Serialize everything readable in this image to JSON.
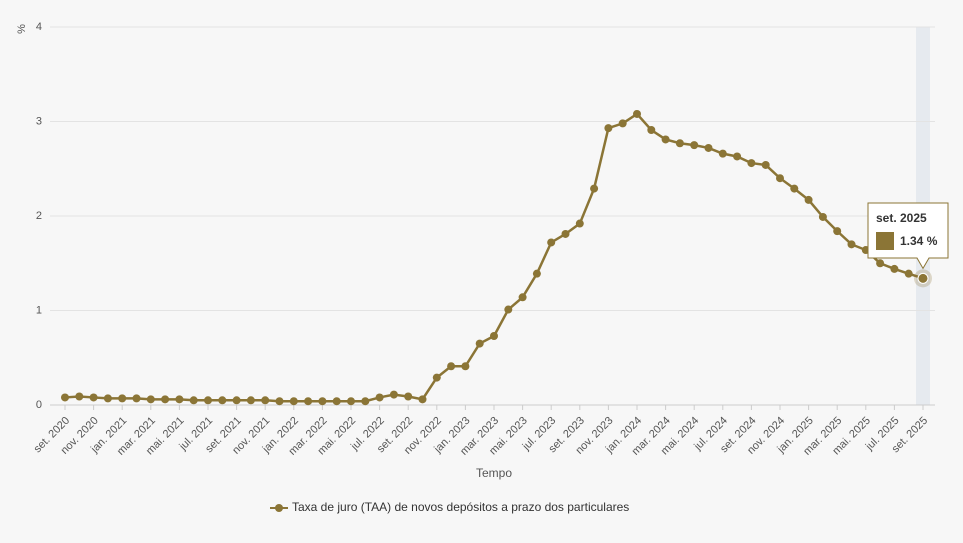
{
  "chart_data": {
    "type": "line",
    "y_unit": "%",
    "x_label": "Tempo",
    "categories": [
      "set. 2020",
      null,
      "nov. 2020",
      null,
      "jan. 2021",
      null,
      "mar. 2021",
      null,
      "mai. 2021",
      null,
      "jul. 2021",
      null,
      "set. 2021",
      null,
      "nov. 2021",
      null,
      "jan. 2022",
      null,
      "mar. 2022",
      null,
      "mai. 2022",
      null,
      "jul. 2022",
      null,
      "set. 2022",
      null,
      "nov. 2022",
      null,
      "jan. 2023",
      null,
      "mar. 2023",
      null,
      "mai. 2023",
      null,
      "jul. 2023",
      null,
      "set. 2023",
      null,
      "nov. 2023",
      null,
      "jan. 2024",
      null,
      "mar. 2024",
      null,
      "mai. 2024",
      null,
      "jul. 2024",
      null,
      "set. 2024",
      null,
      "nov. 2024",
      null,
      "jan. 2025",
      null,
      "mar. 2025",
      null,
      "mai. 2025",
      null,
      "jul. 2025",
      null,
      "set. 2025"
    ],
    "series": [
      {
        "name": "Taxa de juro (TAA) de novos depósitos a prazo dos particulares",
        "color": "#8b7536",
        "values": [
          0.08,
          0.09,
          0.08,
          0.07,
          0.07,
          0.07,
          0.06,
          0.06,
          0.06,
          0.05,
          0.05,
          0.05,
          0.05,
          0.05,
          0.05,
          0.04,
          0.04,
          0.04,
          0.04,
          0.04,
          0.04,
          0.04,
          0.08,
          0.11,
          0.09,
          0.06,
          0.29,
          0.41,
          0.41,
          0.65,
          0.73,
          1.01,
          1.14,
          1.39,
          1.72,
          1.81,
          1.92,
          2.29,
          2.93,
          2.98,
          3.08,
          2.91,
          2.81,
          2.77,
          2.75,
          2.72,
          2.66,
          2.63,
          2.56,
          2.54,
          2.4,
          2.29,
          2.17,
          1.99,
          1.84,
          1.7,
          1.64,
          1.5,
          1.44,
          1.39,
          1.34
        ]
      }
    ],
    "ylim": [
      0,
      4
    ],
    "yticks": [
      0,
      1,
      2,
      3,
      4
    ],
    "grid": true,
    "tooltip": {
      "category": "set. 2025",
      "value": 1.34,
      "label": "1.34 %"
    }
  }
}
